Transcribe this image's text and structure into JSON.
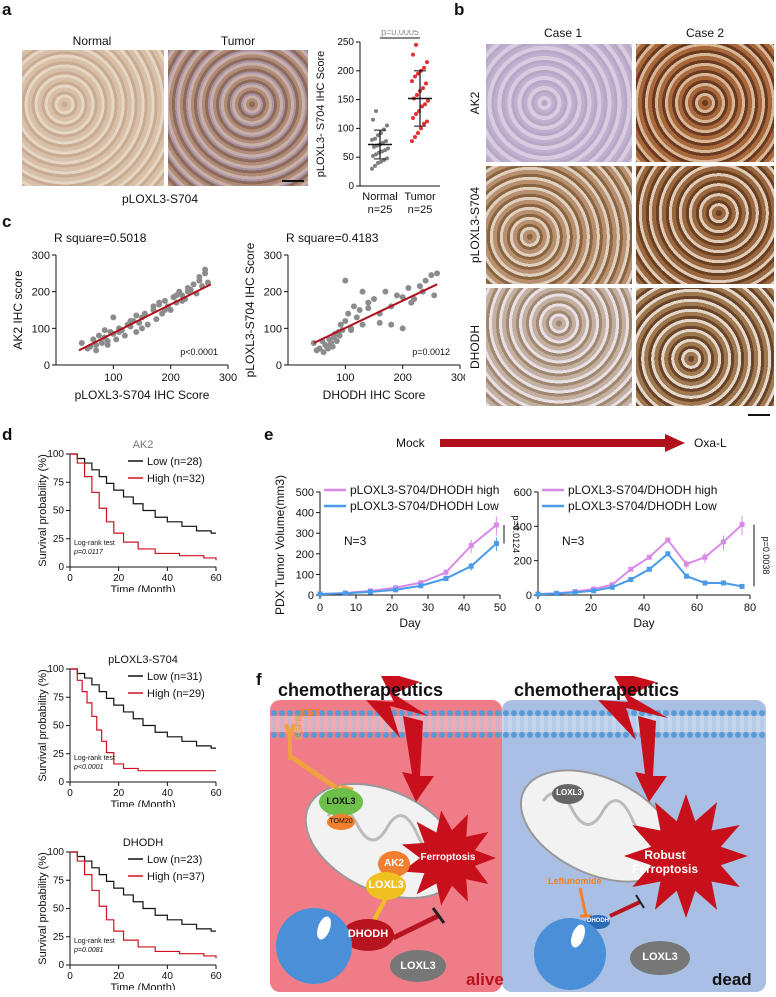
{
  "panel_letters": [
    "a",
    "b",
    "c",
    "d",
    "e",
    "f"
  ],
  "a": {
    "normal_label": "Normal",
    "tumor_label": "Tumor",
    "stain_label": "pLOXL3-S704",
    "dot": {
      "ylabel": "pLOXL3- S704 IHC Score",
      "pvalue": "p=0.0005",
      "yticks": [
        "0",
        "50",
        "100",
        "150",
        "200",
        "250"
      ],
      "groups": [
        {
          "name": "Normal",
          "n": "n=25",
          "color": "#7f7f7f",
          "mean": 72,
          "sd": 25,
          "values": [
            30,
            35,
            40,
            42,
            45,
            48,
            52,
            55,
            58,
            60,
            62,
            65,
            68,
            70,
            72,
            75,
            78,
            80,
            82,
            88,
            92,
            98,
            105,
            115,
            130
          ]
        },
        {
          "name": "Tumor",
          "n": "n=25",
          "color": "#e03030",
          "mean": 152,
          "sd": 48,
          "values": [
            78,
            85,
            92,
            100,
            108,
            112,
            118,
            125,
            130,
            138,
            142,
            148,
            152,
            158,
            165,
            170,
            178,
            182,
            190,
            195,
            200,
            205,
            215,
            228,
            245
          ]
        }
      ]
    }
  },
  "b": {
    "case1": "Case 1",
    "case2": "Case 2",
    "rows": [
      "AK2",
      "pLOXL3-S704",
      "DHODH"
    ]
  },
  "c": {
    "left": {
      "rsq": "R square=0.5018",
      "xlabel": "pLOXL3-S704 IHC Score",
      "ylabel": "AK2 IHC score",
      "p": "p<0.0001",
      "xticks": [
        "100",
        "200",
        "300"
      ],
      "yticks": [
        "0",
        "100",
        "200",
        "300"
      ],
      "x": [
        45,
        55,
        60,
        65,
        70,
        75,
        80,
        85,
        90,
        95,
        100,
        105,
        110,
        115,
        120,
        125,
        130,
        135,
        140,
        145,
        150,
        155,
        160,
        170,
        175,
        180,
        185,
        190,
        195,
        200,
        205,
        210,
        215,
        220,
        225,
        230,
        235,
        240,
        245,
        250,
        255,
        260,
        265,
        70,
        90,
        110,
        130,
        150,
        170,
        190,
        210,
        230,
        250,
        260,
        100,
        140,
        180,
        220,
        85
      ],
      "y": [
        60,
        45,
        50,
        70,
        55,
        80,
        60,
        75,
        65,
        90,
        85,
        70,
        100,
        95,
        80,
        110,
        105,
        120,
        90,
        115,
        130,
        140,
        110,
        150,
        125,
        165,
        140,
        175,
        160,
        150,
        185,
        170,
        200,
        190,
        180,
        210,
        205,
        220,
        195,
        230,
        215,
        250,
        225,
        40,
        55,
        90,
        120,
        100,
        160,
        150,
        190,
        200,
        240,
        260,
        130,
        135,
        170,
        175,
        95
      ],
      "fit": [
        [
          40,
          40
        ],
        [
          270,
          220
        ]
      ]
    },
    "right": {
      "rsq": "R square=0.4183",
      "xlabel": "DHODH IHC Score",
      "ylabel": "pLOXL3-S704 IHC Score",
      "p": "p=0.0012",
      "xticks": [
        "100",
        "200",
        "300"
      ],
      "yticks": [
        "0",
        "100",
        "200",
        "300"
      ],
      "x": [
        45,
        50,
        55,
        60,
        62,
        65,
        68,
        70,
        72,
        75,
        78,
        80,
        82,
        85,
        88,
        90,
        92,
        95,
        100,
        105,
        110,
        115,
        120,
        125,
        130,
        140,
        150,
        160,
        170,
        180,
        190,
        200,
        210,
        220,
        230,
        240,
        250,
        260,
        100,
        130,
        160,
        200,
        110,
        140,
        180,
        215,
        235,
        255
      ],
      "y": [
        60,
        40,
        45,
        65,
        35,
        55,
        50,
        45,
        70,
        60,
        50,
        75,
        85,
        65,
        90,
        80,
        110,
        95,
        120,
        140,
        100,
        160,
        130,
        150,
        110,
        170,
        180,
        140,
        200,
        160,
        190,
        185,
        210,
        180,
        215,
        230,
        245,
        250,
        230,
        200,
        115,
        100,
        95,
        155,
        110,
        170,
        200,
        190
      ],
      "fit": [
        [
          45,
          60
        ],
        [
          260,
          220
        ]
      ]
    }
  },
  "d": {
    "ylabel": "Survival probability (%)",
    "xlabel": "Time (Month)",
    "xticks": [
      "0",
      "20",
      "40",
      "60"
    ],
    "yticks": [
      "0",
      "25",
      "50",
      "75",
      "100"
    ],
    "test": "Log-rank test",
    "plots": [
      {
        "title": "AK2",
        "p": "p=0.0117",
        "low": "Low (n=28)",
        "high": "High (n=32)"
      },
      {
        "title": "pLOXL3-S704",
        "p": "p<0.0001",
        "low": "Low (n=31)",
        "high": "High (n=29)"
      },
      {
        "title": "DHODH",
        "p": "p=0.0081",
        "low": "Low (n=23)",
        "high": "High (n=37)"
      }
    ]
  },
  "e": {
    "mock": "Mock",
    "oxa": "Oxa-L",
    "ylabel": "PDX Tumor Volume(mm3)",
    "xlabel": "Day",
    "n_label": "N=3",
    "legend_high": "pLOXL3-S704/DHODH high",
    "legend_low": "pLOXL3-S704/DHODH Low",
    "high_color": "#d98ae8",
    "low_color": "#4a9be8",
    "left": {
      "p": "p=0.0124",
      "x": [
        0,
        7,
        14,
        21,
        28,
        35,
        42,
        49
      ],
      "high": [
        5,
        10,
        20,
        35,
        60,
        110,
        240,
        340
      ],
      "low": [
        5,
        8,
        15,
        25,
        45,
        80,
        140,
        250
      ],
      "xticks": [
        "0",
        "10",
        "20",
        "30",
        "40",
        "50"
      ],
      "yticks": [
        "0",
        "100",
        "200",
        "300",
        "400",
        "500"
      ]
    },
    "right": {
      "p": "p=0.0038",
      "x": [
        0,
        7,
        14,
        21,
        28,
        35,
        42,
        49,
        56,
        63,
        70,
        77
      ],
      "high": [
        5,
        10,
        20,
        35,
        60,
        150,
        220,
        320,
        180,
        220,
        310,
        410
      ],
      "low": [
        5,
        8,
        15,
        25,
        45,
        90,
        150,
        240,
        110,
        70,
        70,
        50
      ],
      "xticks": [
        "0",
        "20",
        "40",
        "60",
        "80"
      ],
      "yticks": [
        "0",
        "200",
        "400",
        "600"
      ]
    }
  },
  "f": {
    "chemo_left": "chemotherapeutics",
    "chemo_right": "chemotherapeutics",
    "egf": "EGF",
    "egfr": "EGFR",
    "loxl3_tom20": "LOXL3",
    "tom20": "TOM20",
    "ak2": "AK2",
    "loxl3_mito": "LOXL3",
    "dhodh_left": "DHODH",
    "ferroptosis": "Ferroptosis",
    "loxl3_cyto_left": "LOXL3",
    "alive": "alive",
    "loxl3_right_top": "LOXL3",
    "robust_ferroptosis": "Robust Ferroptosis",
    "leflunomide": "Leflunomide",
    "dhodh_right": "DHODH",
    "loxl3_cyto_right": "LOXL3",
    "dead": "dead",
    "colors": {
      "alive_bg": "#f07c88",
      "dead_bg": "#a9bfe4",
      "membrane": "#5b9bd5",
      "bolt": "#c8101c",
      "egfr": "#f0a040",
      "loxl3_green": "#6cc04a",
      "ak2_orange": "#f08030",
      "loxl3_yellow": "#f0c020",
      "dhodh_red": "#b81420",
      "nucleus": "#4a90d9",
      "loxl3_grey": "#777777"
    }
  }
}
